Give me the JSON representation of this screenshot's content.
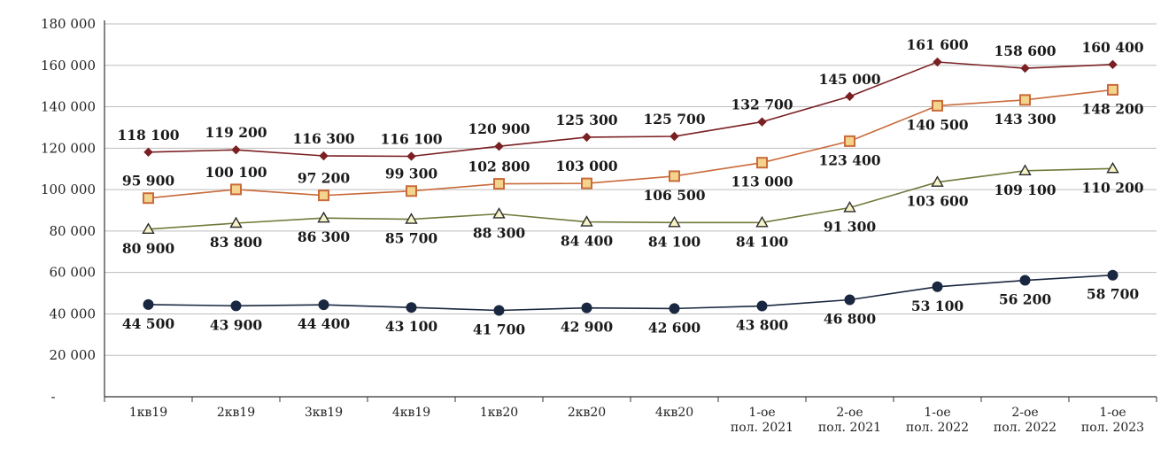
{
  "chart_data": {
    "type": "line",
    "title": "",
    "xlabel": "",
    "ylabel": "",
    "ylim": [
      0,
      180000
    ],
    "grid": true,
    "legend": "none",
    "y_ticks": [
      {
        "value": 0,
        "label": "-"
      },
      {
        "value": 20000,
        "label": "20 000"
      },
      {
        "value": 40000,
        "label": "40 000"
      },
      {
        "value": 60000,
        "label": "60 000"
      },
      {
        "value": 80000,
        "label": "80 000"
      },
      {
        "value": 100000,
        "label": "100 000"
      },
      {
        "value": 120000,
        "label": "120 000"
      },
      {
        "value": 140000,
        "label": "140 000"
      },
      {
        "value": 160000,
        "label": "160 000"
      },
      {
        "value": 180000,
        "label": "180 000"
      }
    ],
    "categories": [
      [
        "1кв19"
      ],
      [
        "2кв19"
      ],
      [
        "3кв19"
      ],
      [
        "4кв19"
      ],
      [
        "1кв20"
      ],
      [
        "2кв20"
      ],
      [
        "4кв20"
      ],
      [
        "1-ое",
        "пол. 2021"
      ],
      [
        "2-ое",
        "пол. 2021"
      ],
      [
        "1-ое",
        "пол. 2022"
      ],
      [
        "2-ое",
        "пол. 2022"
      ],
      [
        "1-ое",
        "пол. 2023"
      ]
    ],
    "series": [
      {
        "color": "#7a1f22",
        "marker": "diamond",
        "values": [
          118100,
          119200,
          116300,
          116100,
          120900,
          125300,
          125700,
          132700,
          145000,
          161600,
          158600,
          160400
        ],
        "labels": [
          "118 100",
          "119 200",
          "116 300",
          "116 100",
          "120 900",
          "125 300",
          "125 700",
          "132 700",
          "145 000",
          "161 600",
          "158 600",
          "160 400"
        ],
        "label_pos": [
          "above",
          "above",
          "above",
          "above",
          "above",
          "above",
          "above",
          "above",
          "above",
          "above",
          "above",
          "above"
        ]
      },
      {
        "color": "#c96a3a",
        "marker": "square",
        "marker_fill": "#f4d48c",
        "values": [
          95900,
          100100,
          97200,
          99300,
          102800,
          103000,
          106500,
          113000,
          123400,
          140500,
          143300,
          148200
        ],
        "labels": [
          "95 900",
          "100 100",
          "97 200",
          "99 300",
          "102 800",
          "103 000",
          "106 500",
          "113 000",
          "123 400",
          "140 500",
          "143 300",
          "148 200"
        ],
        "label_pos": [
          "above",
          "above",
          "above",
          "above",
          "above",
          "above",
          "below",
          "below",
          "below",
          "below",
          "below",
          "below"
        ]
      },
      {
        "color": "#6f7a3a",
        "marker": "triangle",
        "marker_fill": "#f6f3c6",
        "values": [
          80900,
          83800,
          86300,
          85700,
          88300,
          84400,
          84100,
          84100,
          91300,
          103600,
          109100,
          110200
        ],
        "labels": [
          "80 900",
          "83 800",
          "86 300",
          "85 700",
          "88 300",
          "84 400",
          "84 100",
          "84 100",
          "91 300",
          "103 600",
          "109 100",
          "110 200"
        ],
        "label_pos": [
          "below",
          "below",
          "below",
          "below",
          "below",
          "below",
          "below",
          "below",
          "below",
          "below",
          "below",
          "below"
        ]
      },
      {
        "color": "#1a2740",
        "marker": "circle",
        "values": [
          44500,
          43900,
          44400,
          43100,
          41700,
          42900,
          42600,
          43800,
          46800,
          53100,
          56200,
          58700
        ],
        "labels": [
          "44 500",
          "43 900",
          "44 400",
          "43 100",
          "41 700",
          "42 900",
          "42 600",
          "43 800",
          "46 800",
          "53 100",
          "56 200",
          "58 700"
        ],
        "label_pos": [
          "below",
          "below",
          "below",
          "below",
          "below",
          "below",
          "below",
          "below",
          "below",
          "below",
          "below",
          "below"
        ]
      }
    ]
  }
}
